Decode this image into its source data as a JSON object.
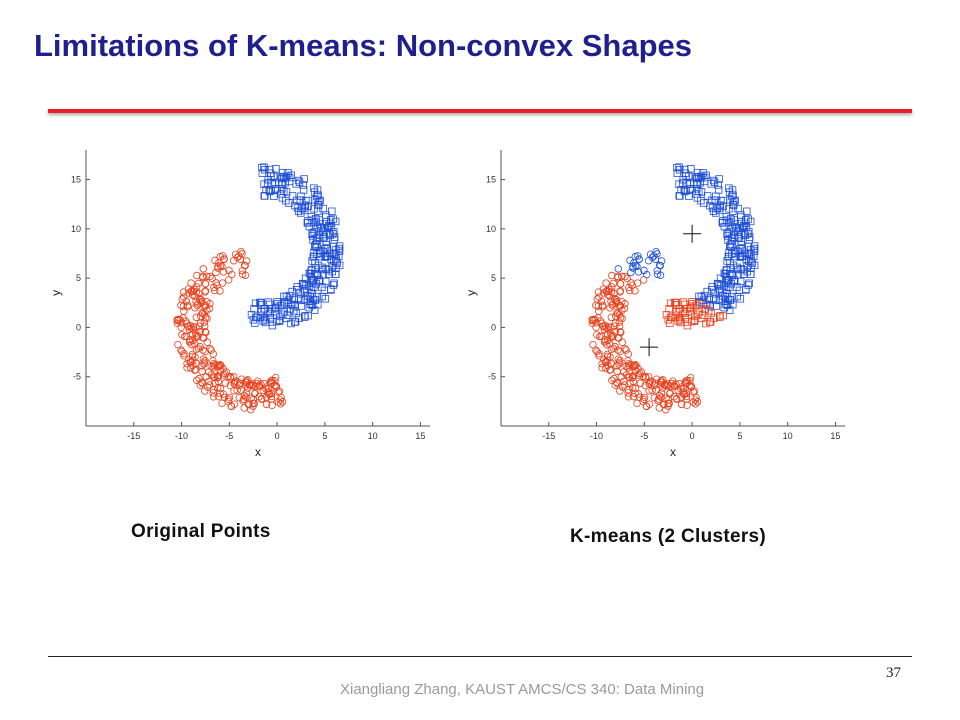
{
  "slide": {
    "title": "Limitations of K-means: Non-convex Shapes",
    "page_number": "37",
    "footer": "Xiangliang Zhang, KAUST AMCS/CS 340: Data Mining",
    "accent_color": "#e8202a",
    "title_color": "#1f1f8f"
  },
  "captions": {
    "left": "Original Points",
    "right": "K-means (2 Clusters)"
  },
  "chart_data": [
    {
      "type": "scatter",
      "title": "",
      "xlabel": "x",
      "ylabel": "y",
      "xlim": [
        -20,
        16
      ],
      "ylim": [
        -10,
        18
      ],
      "xticks": [
        -15,
        -10,
        -5,
        0,
        5,
        10,
        15
      ],
      "yticks": [
        -5,
        0,
        5,
        10,
        15
      ],
      "grid": false,
      "series": [
        {
          "marker": "circle",
          "color": "#e8401c",
          "shape": "lower crescent",
          "arc_center": [
            -2,
            0
          ],
          "arc_radius": 7.0,
          "arc_angle_range_deg": [
            100,
            290
          ],
          "arc_thickness": 3.2,
          "point_count": 300
        },
        {
          "marker": "square",
          "color": "#2050d8",
          "shape": "upper crescent",
          "arc_center": [
            -1.5,
            8
          ],
          "arc_radius": 6.8,
          "arc_angle_range_deg": [
            -100,
            92
          ],
          "arc_thickness": 3.0,
          "point_count": 300
        }
      ]
    },
    {
      "type": "scatter",
      "title": "",
      "xlabel": "x",
      "ylabel": "y",
      "xlim": [
        -20,
        16
      ],
      "ylim": [
        -10,
        18
      ],
      "xticks": [
        -15,
        -10,
        -5,
        0,
        5,
        10,
        15
      ],
      "yticks": [
        -5,
        0,
        5,
        10,
        15
      ],
      "grid": false,
      "centroids": [
        [
          0,
          9.5
        ],
        [
          -4.5,
          -2
        ]
      ],
      "assignment": "points split by nearest centroid",
      "series": [
        {
          "marker": "circle",
          "color": "#e8401c",
          "shape": "lower crescent",
          "arc_center": [
            -2,
            0
          ],
          "arc_radius": 7.0,
          "arc_angle_range_deg": [
            100,
            290
          ],
          "arc_thickness": 3.2,
          "point_count": 300
        },
        {
          "marker": "square",
          "color": "#2050d8",
          "shape": "upper crescent",
          "arc_center": [
            -1.5,
            8
          ],
          "arc_radius": 6.8,
          "arc_angle_range_deg": [
            -100,
            92
          ],
          "arc_thickness": 3.0,
          "point_count": 300
        }
      ],
      "cluster_styles": [
        {
          "marker": "square",
          "color": "#2050d8"
        },
        {
          "marker": "circle",
          "color": "#2050d8"
        },
        {
          "marker": "square",
          "color": "#e8401c"
        },
        {
          "marker": "circle",
          "color": "#e8401c"
        }
      ]
    }
  ]
}
